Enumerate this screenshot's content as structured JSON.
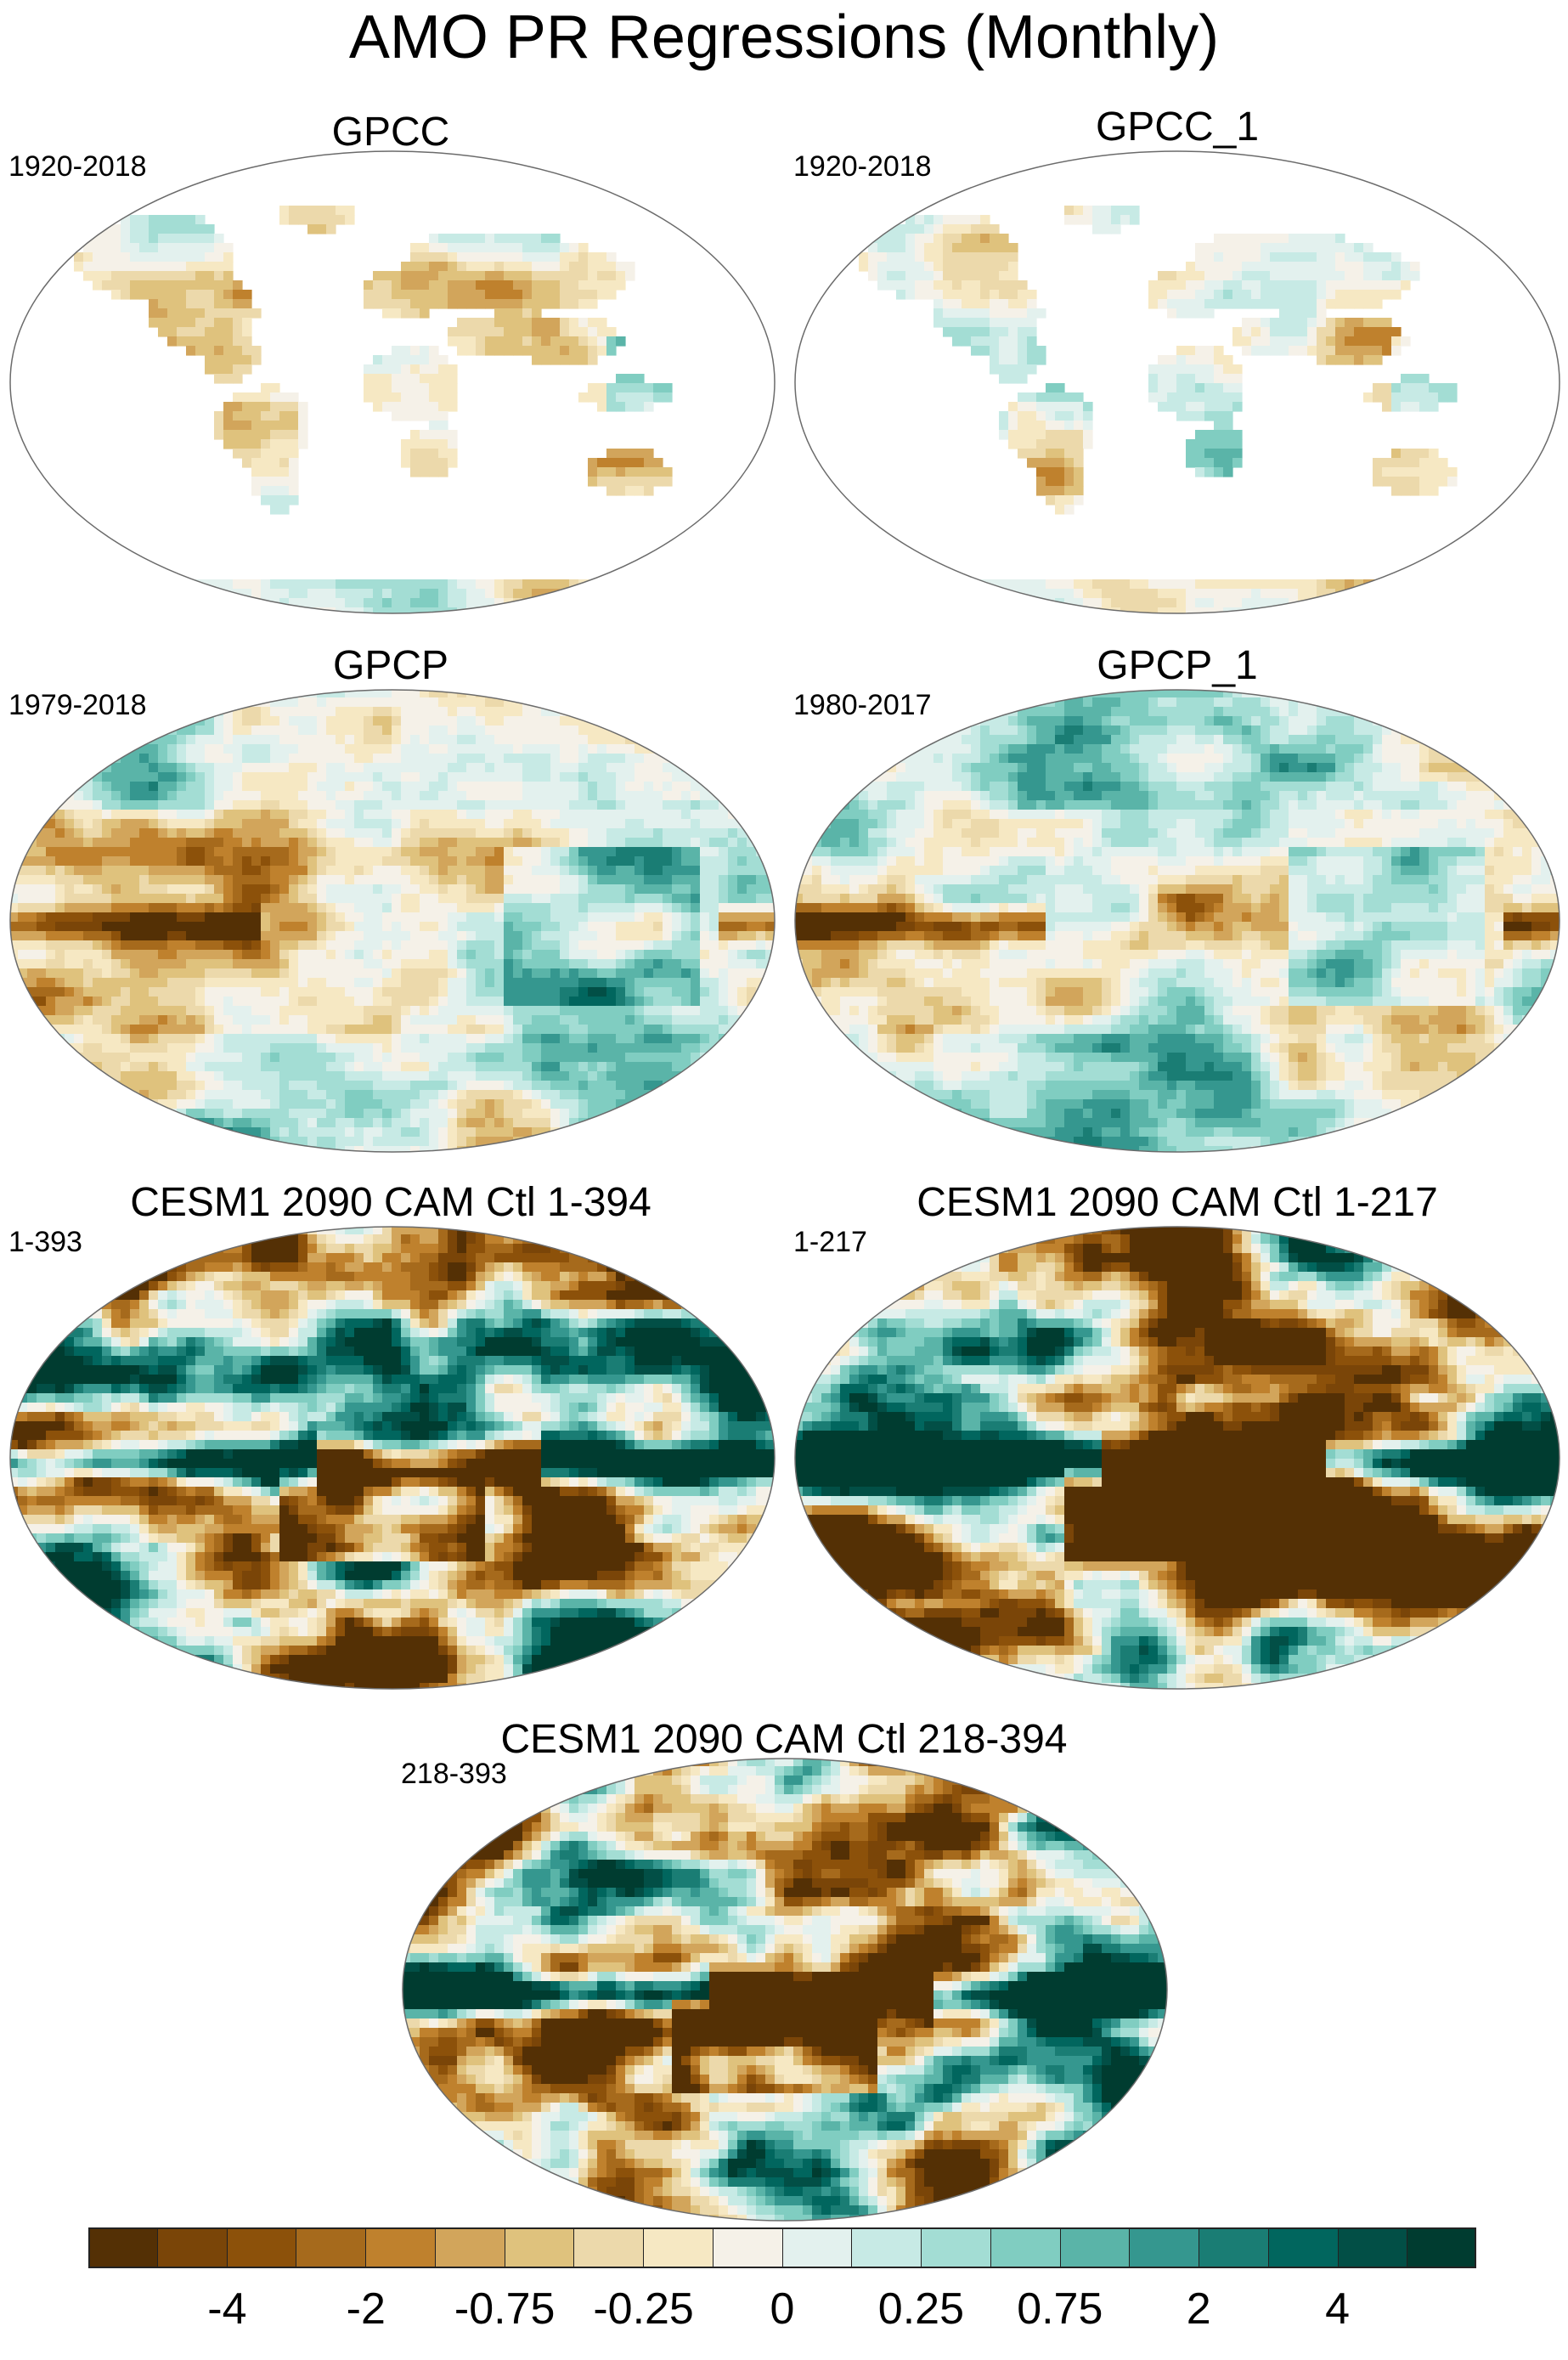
{
  "figure": {
    "title": "AMO PR Regressions (Monthly)"
  },
  "panels": [
    {
      "title": "GPCC",
      "period": "1920-2018",
      "style": "land-weak"
    },
    {
      "title": "GPCC_1",
      "period": "1920-2018",
      "style": "land-weak"
    },
    {
      "title": "GPCP",
      "period": "1979-2018",
      "style": "global-moderate"
    },
    {
      "title": "GPCP_1",
      "period": "1980-2017",
      "style": "global-moderate"
    },
    {
      "title": "CESM1 2090 CAM Ctl 1-394",
      "period": "1-393",
      "style": "global-strong"
    },
    {
      "title": "CESM1 2090 CAM Ctl 1-217",
      "period": "1-217",
      "style": "global-strong"
    },
    {
      "title": "CESM1 2090 CAM Ctl 218-394",
      "period": "218-393",
      "style": "global-strong"
    }
  ],
  "colorbar": {
    "colors": [
      "#543005",
      "#7a4508",
      "#8c510a",
      "#a66a1c",
      "#bf812d",
      "#d2a55b",
      "#dfc27d",
      "#ecd9ab",
      "#f6e8c3",
      "#f5f1e8",
      "#e3f1ee",
      "#c7eae5",
      "#a3ddd4",
      "#80cdc1",
      "#5ab4a8",
      "#35978f",
      "#1a7d74",
      "#01665e",
      "#024f46",
      "#003c30"
    ],
    "tick_labels": [
      {
        "text": "-4",
        "boundary": 2
      },
      {
        "text": "-2",
        "boundary": 4
      },
      {
        "text": "-0.75",
        "boundary": 6
      },
      {
        "text": "-0.25",
        "boundary": 8
      },
      {
        "text": "0",
        "boundary": 10
      },
      {
        "text": "0.25",
        "boundary": 12
      },
      {
        "text": "0.75",
        "boundary": 14
      },
      {
        "text": "2",
        "boundary": 16
      },
      {
        "text": "4",
        "boundary": 18
      }
    ]
  }
}
